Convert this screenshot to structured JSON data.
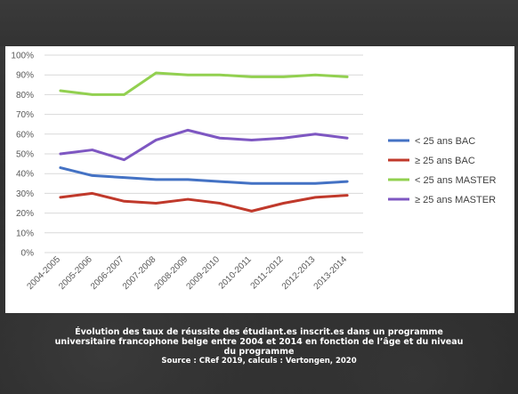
{
  "caption": {
    "line1": "Évolution des taux de réussite des étudiant.es inscrit.es dans un programme",
    "line2": "universitaire francophone belge entre 2004 et 2014 en fonction de l’âge et du niveau",
    "line3": "du programme",
    "source": "Source : CRef 2019, calculs : Vertongen, 2020"
  },
  "chart_data": {
    "type": "line",
    "title": "",
    "xlabel": "",
    "ylabel": "",
    "categories": [
      "2004-2005",
      "2005-2006",
      "2006-2007",
      "2007-2008",
      "2008-2009",
      "2009-2010",
      "2010-2011",
      "2011-2012",
      "2012-2013",
      "2013-2014"
    ],
    "y_ticks": [
      "0%",
      "10%",
      "20%",
      "30%",
      "40%",
      "50%",
      "60%",
      "70%",
      "80%",
      "90%",
      "100%"
    ],
    "ylim": [
      0,
      100
    ],
    "grid": true,
    "legend_position": "right",
    "series": [
      {
        "name": "< 25 ans BAC",
        "color": "#4472C4",
        "values": [
          43,
          39,
          38,
          37,
          37,
          36,
          35,
          35,
          35,
          36
        ]
      },
      {
        "name": "≥ 25 ans BAC",
        "color": "#C0392B",
        "values": [
          28,
          30,
          26,
          25,
          27,
          25,
          21,
          25,
          28,
          29
        ]
      },
      {
        "name": "< 25 ans MASTER",
        "color": "#92D050",
        "values": [
          82,
          80,
          80,
          91,
          90,
          90,
          89,
          89,
          90,
          89
        ]
      },
      {
        "name": "≥ 25 ans MASTER",
        "color": "#7E57C2",
        "values": [
          50,
          52,
          47,
          57,
          62,
          58,
          57,
          58,
          60,
          58
        ]
      }
    ]
  }
}
